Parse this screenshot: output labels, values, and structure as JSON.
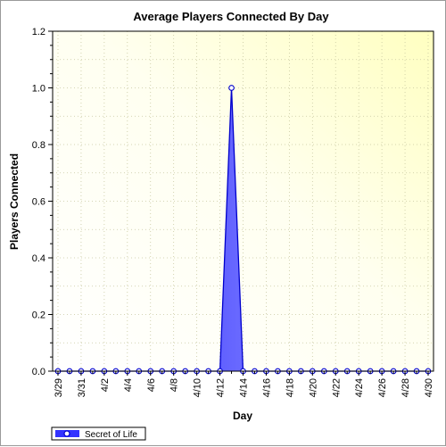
{
  "chart_data": {
    "type": "area",
    "title": "Average Players Connected By Day",
    "xlabel": "Day",
    "ylabel": "Players Connected",
    "ylim": [
      0,
      1.2
    ],
    "yticks": [
      "0.0",
      "0.2",
      "0.4",
      "0.6",
      "0.8",
      "1.0",
      "1.2"
    ],
    "x": [
      "3/29",
      "3/30",
      "3/31",
      "4/1",
      "4/2",
      "4/3",
      "4/4",
      "4/5",
      "4/6",
      "4/7",
      "4/8",
      "4/9",
      "4/10",
      "4/11",
      "4/12",
      "4/13",
      "4/14",
      "4/15",
      "4/16",
      "4/17",
      "4/18",
      "4/19",
      "4/20",
      "4/21",
      "4/22",
      "4/23",
      "4/24",
      "4/25",
      "4/26",
      "4/27",
      "4/28",
      "4/29",
      "4/30"
    ],
    "xtick_labels": [
      "3/29",
      "3/31",
      "4/2",
      "4/4",
      "4/6",
      "4/8",
      "4/10",
      "4/12",
      "4/14",
      "4/16",
      "4/18",
      "4/20",
      "4/22",
      "4/24",
      "4/26",
      "4/28",
      "4/30"
    ],
    "series": [
      {
        "name": "Secret of Life",
        "values": [
          0,
          0,
          0,
          0,
          0,
          0,
          0,
          0,
          0,
          0,
          0,
          0,
          0,
          0,
          0,
          1.0,
          0,
          0,
          0,
          0,
          0,
          0,
          0,
          0,
          0,
          0,
          0,
          0,
          0,
          0,
          0,
          0,
          0
        ]
      }
    ],
    "grid": true,
    "legend": "bottom-left",
    "colors": {
      "series": "#3333ff",
      "series_dark": "#0000cc",
      "plot_bg_light": "#fffff0",
      "plot_bg_yellow": "#ffffc0"
    }
  }
}
